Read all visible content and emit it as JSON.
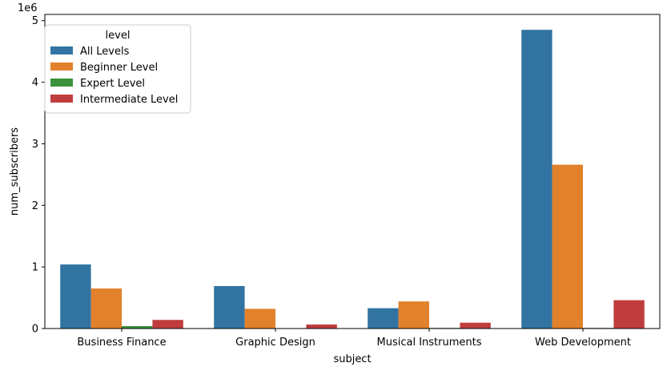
{
  "chart_data": {
    "type": "bar",
    "title": "",
    "xlabel": "subject",
    "ylabel": "num_subscribers",
    "y_offset_label": "1e6",
    "ylim": [
      0,
      5.1
    ],
    "y_scale_factor": 1000000,
    "yticks": [
      0,
      1,
      2,
      3,
      4,
      5
    ],
    "ytick_labels": [
      "0",
      "1",
      "2",
      "3",
      "4",
      "5"
    ],
    "grid": false,
    "categories": [
      "Business Finance",
      "Graphic Design",
      "Musical Instruments",
      "Web Development"
    ],
    "legend": {
      "title": "level",
      "placement": "top-left"
    },
    "series": [
      {
        "name": "All Levels",
        "color": "#3274a1",
        "values": [
          1040000,
          690000,
          330000,
          4850000
        ]
      },
      {
        "name": "Beginner Level",
        "color": "#e1812c",
        "values": [
          650000,
          320000,
          440000,
          2660000
        ]
      },
      {
        "name": "Expert Level",
        "color": "#3a923a",
        "values": [
          40000,
          2000,
          10000,
          10000
        ]
      },
      {
        "name": "Intermediate Level",
        "color": "#c03d3e",
        "values": [
          140000,
          65000,
          95000,
          460000
        ]
      }
    ]
  }
}
